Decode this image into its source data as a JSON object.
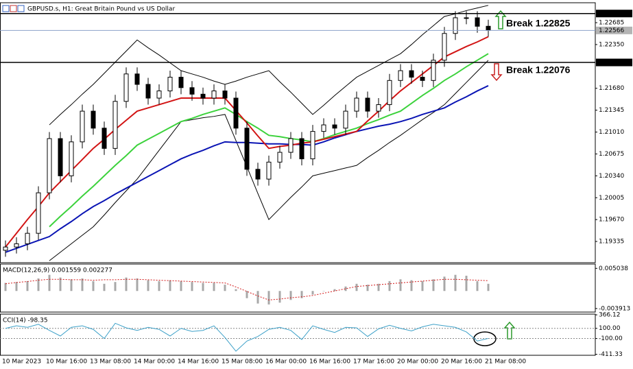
{
  "chart_data": [
    {
      "type": "candlestick",
      "title": "GBPUSD.s, H1: Great Britain Pound vs US Dollar",
      "categories": [
        "10 Mar 2023",
        null,
        null,
        null,
        "10 Mar 16:00",
        null,
        null,
        null,
        "13 Mar 08:00",
        null,
        null,
        null,
        "14 Mar 00:00",
        null,
        null,
        null,
        "14 Mar 16:00",
        null,
        null,
        null,
        "15 Mar 08:00",
        null,
        null,
        null,
        "16 Mar 00:00",
        null,
        null,
        null,
        "16 Mar 16:00",
        null,
        null,
        null,
        "17 Mar 16:00",
        null,
        null,
        null,
        "20 Mar 00:00",
        null,
        null,
        null,
        "20 Mar 16:00",
        null,
        null,
        null,
        "21 Mar 08:00"
      ],
      "open": [
        1.192,
        1.1925,
        1.193,
        1.1946,
        1.2008,
        1.2091,
        1.2034,
        1.2086,
        1.2133,
        1.2107,
        1.2076,
        1.2148,
        1.219,
        1.2174,
        1.2153,
        1.2164,
        1.2185,
        1.2169,
        1.2159,
        1.2153,
        1.2164,
        1.2153,
        1.2107,
        1.2044,
        1.2029,
        1.2055,
        1.207,
        1.2091,
        1.206,
        1.2102,
        1.2112,
        1.2107,
        1.2133,
        1.2153,
        1.2133,
        1.2143,
        1.218,
        1.2195,
        1.2185,
        1.218,
        1.2211,
        1.2252,
        1.2276,
        1.2276,
        1.2263
      ],
      "high": [
        1.1935,
        1.194,
        1.1956,
        1.2018,
        1.2101,
        1.2101,
        1.2096,
        1.2143,
        1.2143,
        1.2117,
        1.2158,
        1.22,
        1.22,
        1.2184,
        1.2174,
        1.2195,
        1.2195,
        1.2179,
        1.2169,
        1.2174,
        1.2174,
        1.2163,
        1.2117,
        1.2054,
        1.2065,
        1.208,
        1.2101,
        1.2101,
        1.2112,
        1.2122,
        1.2122,
        1.2143,
        1.2163,
        1.2163,
        1.2153,
        1.219,
        1.2205,
        1.2205,
        1.2195,
        1.2221,
        1.2262,
        1.2286,
        1.2286,
        1.2286,
        1.2273
      ],
      "low": [
        1.191,
        1.1915,
        1.192,
        1.1936,
        1.1998,
        1.2024,
        1.2024,
        1.2076,
        1.2097,
        1.2066,
        1.2066,
        1.2138,
        1.2164,
        1.2143,
        1.2143,
        1.2154,
        1.2159,
        1.2149,
        1.2143,
        1.2143,
        1.2143,
        1.2097,
        1.2034,
        1.2019,
        1.2019,
        1.2045,
        1.206,
        1.205,
        1.205,
        1.2092,
        1.2097,
        1.2097,
        1.2123,
        1.2123,
        1.2123,
        1.2133,
        1.217,
        1.2175,
        1.217,
        1.217,
        1.2201,
        1.2242,
        1.2266,
        1.2253,
        1.2247
      ],
      "close": [
        1.1925,
        1.193,
        1.1946,
        1.2008,
        1.2091,
        1.2034,
        1.2086,
        1.2133,
        1.2107,
        1.2076,
        1.2148,
        1.219,
        1.2174,
        1.2153,
        1.2164,
        1.2185,
        1.2169,
        1.2159,
        1.2153,
        1.2164,
        1.2153,
        1.2107,
        1.2044,
        1.2029,
        1.2055,
        1.207,
        1.2091,
        1.206,
        1.2102,
        1.2112,
        1.2107,
        1.2133,
        1.2153,
        1.2133,
        1.2143,
        1.218,
        1.2195,
        1.2185,
        1.218,
        1.2211,
        1.2252,
        1.2276,
        1.2276,
        1.2263,
        1.2257
      ],
      "series": [
        {
          "color": "#000000",
          "width": 1,
          "values": [
            null,
            null,
            null,
            null,
            1.2112,
            1.2128,
            1.2143,
            1.2159,
            1.2174,
            1.2191,
            1.2208,
            1.2225,
            1.2242,
            1.223,
            1.2219,
            1.2207,
            1.2195,
            1.219,
            1.2185,
            1.2179,
            1.2174,
            1.2179,
            1.2185,
            1.219,
            1.2195,
            1.2178,
            1.2162,
            1.2145,
            1.2128,
            1.2142,
            1.2157,
            1.2171,
            1.2185,
            1.2194,
            1.2203,
            1.2212,
            1.2221,
            1.2235,
            1.225,
            1.2264,
            1.2278,
            1.2282,
            1.2287,
            1.2291,
            1.2295
          ]
        },
        {
          "color": "#000000",
          "width": 1,
          "values": [
            null,
            null,
            null,
            null,
            1.1904,
            1.1917,
            1.193,
            1.1943,
            1.1956,
            1.1974,
            1.1993,
            1.2011,
            1.2029,
            1.2051,
            1.2073,
            1.2095,
            1.2117,
            1.212,
            1.2123,
            1.2125,
            1.2128,
            1.2088,
            1.2048,
            1.2007,
            1.1967,
            1.1984,
            1.2001,
            1.2017,
            1.2034,
            1.2038,
            1.2042,
            1.2046,
            1.205,
            1.2062,
            1.2073,
            1.2085,
            1.2096,
            1.2108,
            1.212,
            1.2131,
            1.2143,
            1.216,
            1.2177,
            1.2194,
            1.2211
          ]
        },
        {
          "color": "#0a14b4",
          "width": 2,
          "values": [
            1.1917,
            1.1923,
            1.1929,
            1.1935,
            1.1941,
            1.1953,
            1.1964,
            1.1976,
            1.1987,
            1.1996,
            1.2006,
            1.2015,
            1.2024,
            1.2033,
            1.2042,
            1.2051,
            1.206,
            1.2067,
            1.2073,
            1.208,
            1.2086,
            1.2085,
            1.2085,
            1.2084,
            1.2083,
            1.2083,
            1.2082,
            1.2082,
            1.2081,
            1.2086,
            1.2092,
            1.2097,
            1.2102,
            1.2106,
            1.211,
            1.2113,
            1.2117,
            1.2122,
            1.2128,
            1.2133,
            1.2138,
            1.2147,
            1.2155,
            1.2164,
            1.2172
          ]
        },
        {
          "color": "#3cd23c",
          "width": 2,
          "values": [
            null,
            null,
            null,
            null,
            1.1956,
            1.1972,
            1.1987,
            1.2003,
            1.2018,
            1.2034,
            1.205,
            1.2065,
            1.2081,
            1.209,
            1.2099,
            1.2108,
            1.2117,
            1.2122,
            1.2128,
            1.2133,
            1.2138,
            1.2128,
            1.2117,
            1.2107,
            1.2096,
            1.2094,
            1.2091,
            1.2089,
            1.2086,
            1.2091,
            1.2097,
            1.2102,
            1.2107,
            1.2114,
            1.212,
            1.2127,
            1.2133,
            1.2145,
            1.2157,
            1.2168,
            1.218,
            1.219,
            1.2201,
            1.2211,
            1.2221
          ]
        },
        {
          "color": "#d21414",
          "width": 2,
          "values": [
            1.1925,
            1.1946,
            1.1967,
            1.1987,
            1.2008,
            1.2025,
            1.2042,
            1.2059,
            1.2076,
            1.209,
            1.2105,
            1.2119,
            1.2133,
            1.2138,
            1.2143,
            1.2148,
            1.2153,
            1.2153,
            1.2153,
            1.2153,
            1.2153,
            1.2134,
            1.2115,
            1.2095,
            1.2076,
            1.2079,
            1.2081,
            1.2084,
            1.2086,
            1.209,
            1.2094,
            1.2098,
            1.2102,
            1.2118,
            1.2133,
            1.2149,
            1.2164,
            1.2177,
            1.219,
            1.2203,
            1.2216,
            1.2224,
            1.2232,
            1.2239,
            1.2247
          ]
        }
      ],
      "levels": [
        {
          "value": 1.22825,
          "color": "#000000",
          "width": 1.5,
          "label_bg": "#000000",
          "label_color": "#ffffff"
        },
        {
          "value": 1.22566,
          "color": "#8aa0c8",
          "width": 1,
          "label_bg": "#b4b4b4",
          "label_color": "#ffffff"
        },
        {
          "value": 1.22076,
          "color": "#000000",
          "width": 1.5,
          "label_bg": "#000000",
          "label_color": "#ffffff"
        }
      ],
      "annotations": [
        "Break 1.22825",
        "Break 1.22076"
      ],
      "ylim": [
        1.1901,
        1.2299
      ],
      "yticks": [
        1.22685,
        {
          "value": 1.2235,
          "label": "1.22350"
        },
        {
          "value": 1.2168,
          "label": "1.21680"
        },
        1.21345,
        {
          "value": 1.2101,
          "label": "1.21010"
        },
        1.20675,
        {
          "value": 1.2034,
          "label": "1.20340"
        },
        1.20005,
        {
          "value": 1.1967,
          "label": "1.19670"
        },
        1.19335
      ]
    },
    {
      "type": "bar",
      "title": "MACD(12,26,9) 0.001559 0.002277",
      "series": [
        {
          "kind": "bar",
          "color": "#a8a8a8",
          "values": [
            0.0018,
            0.002,
            0.0022,
            0.0028,
            0.0036,
            0.003,
            0.0026,
            0.0028,
            0.0022,
            0.0016,
            0.002,
            0.003,
            0.0028,
            0.0024,
            0.0022,
            0.0024,
            0.0022,
            0.002,
            0.0018,
            0.0018,
            0.0014,
            0.0004,
            -0.0016,
            -0.0028,
            -0.003,
            -0.0026,
            -0.002,
            -0.0016,
            -0.0008,
            0.0,
            0.0004,
            0.001,
            0.0016,
            0.0014,
            0.0016,
            0.0022,
            0.0026,
            0.0024,
            0.0022,
            0.0026,
            0.0032,
            0.0036,
            0.0034,
            0.0022,
            0.0016
          ]
        },
        {
          "kind": "line",
          "dashed": true,
          "color": "#d21414",
          "values": [
            0.0016,
            0.0019,
            0.0021,
            0.0024,
            0.0026,
            0.0026,
            0.0025,
            0.0025,
            0.0024,
            0.0025,
            0.0025,
            0.0026,
            0.0026,
            0.0025,
            0.0024,
            0.0023,
            0.0022,
            0.0021,
            0.002,
            0.0019,
            0.0018,
            0.0009,
            -0.0001,
            -0.0011,
            -0.002,
            -0.0018,
            -0.0015,
            -0.0013,
            -0.001,
            -0.0005,
            0.0,
            0.0005,
            0.001,
            0.0012,
            0.0014,
            0.0016,
            0.0018,
            0.002,
            0.0022,
            0.0024,
            0.0026,
            0.0026,
            0.0025,
            0.0024,
            0.0023
          ]
        }
      ],
      "ylim": [
        -0.0047,
        0.006
      ],
      "yticks": [
        0.005038,
        -0.003913
      ]
    },
    {
      "type": "line",
      "title": "CCI(14) -98.35",
      "series": [
        {
          "color": "#3ca0c8",
          "values": [
            100,
            150,
            120,
            180,
            60,
            -50,
            120,
            150,
            80,
            -100,
            200,
            110,
            60,
            120,
            80,
            -50,
            100,
            40,
            60,
            150,
            -80,
            -350,
            -150,
            -60,
            80,
            120,
            60,
            -120,
            150,
            80,
            20,
            120,
            110,
            -60,
            90,
            160,
            100,
            50,
            130,
            180,
            150,
            120,
            30,
            -150,
            -98.35
          ]
        }
      ],
      "reference_lines": [
        100,
        -100
      ],
      "ylim": [
        -430,
        380
      ],
      "yticks": [
        366.12,
        {
          "value": 100,
          "label": "100.00"
        },
        {
          "value": -100,
          "label": "-100.00"
        },
        -411.33
      ]
    }
  ]
}
